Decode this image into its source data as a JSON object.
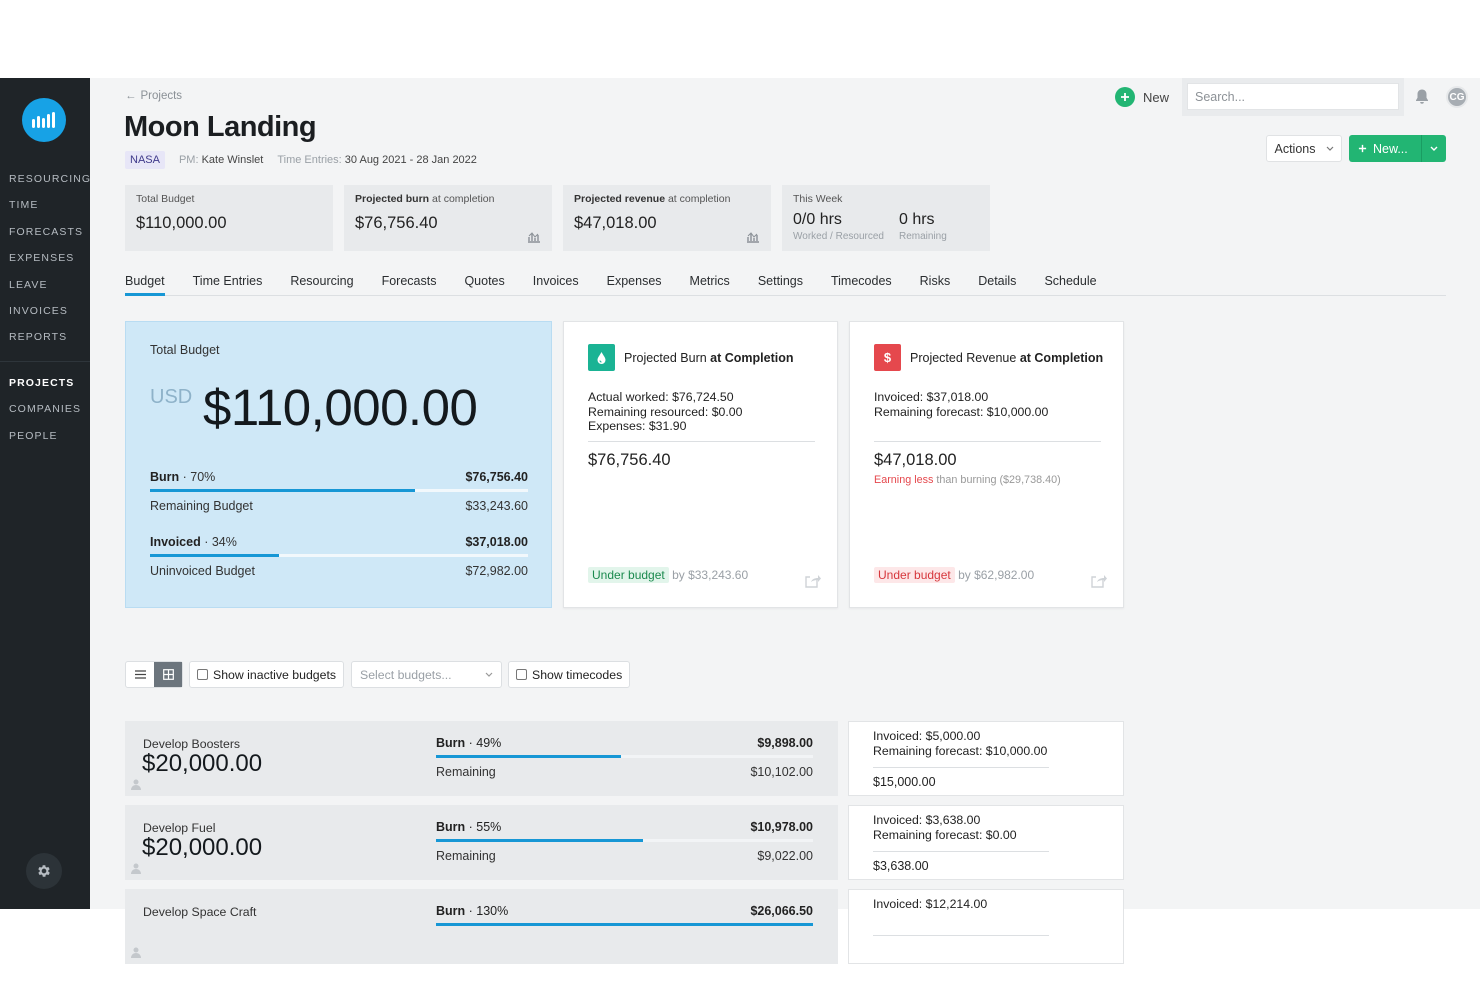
{
  "sidebar": {
    "items_top": [
      "RESOURCING",
      "TIME",
      "FORECASTS",
      "EXPENSES",
      "LEAVE",
      "INVOICES",
      "REPORTS"
    ],
    "items_bottom": [
      "PROJECTS",
      "COMPANIES",
      "PEOPLE"
    ],
    "active": "PROJECTS"
  },
  "topbar": {
    "new_label": "New",
    "search_placeholder": "Search...",
    "avatar_initials": "CG"
  },
  "header": {
    "breadcrumb": "Projects",
    "title": "Moon Landing",
    "client": "NASA",
    "pm_label": "PM:",
    "pm_name": "Kate Winslet",
    "time_entries_label": "Time Entries:",
    "time_entries_range": "30 Aug 2021 - 28 Jan 2022",
    "actions_label": "Actions",
    "new_button_label": "New..."
  },
  "summary": {
    "total_budget": {
      "label": "Total Budget",
      "value": "$110,000.00"
    },
    "projected_burn": {
      "label_bold": "Projected burn",
      "label_rest": "at completion",
      "value": "$76,756.40"
    },
    "projected_revenue": {
      "label_bold": "Projected revenue",
      "label_rest": "at completion",
      "value": "$47,018.00"
    },
    "this_week": {
      "label": "This Week",
      "worked_value": "0/0 hrs",
      "worked_sub": "Worked / Resourced",
      "remaining_value": "0 hrs",
      "remaining_sub": "Remaining"
    }
  },
  "tabs": [
    "Budget",
    "Time Entries",
    "Resourcing",
    "Forecasts",
    "Quotes",
    "Invoices",
    "Expenses",
    "Metrics",
    "Settings",
    "Timecodes",
    "Risks",
    "Details",
    "Schedule"
  ],
  "active_tab": "Budget",
  "budget_card": {
    "title": "Total Budget",
    "currency": "USD",
    "amount": "$110,000.00",
    "burn": {
      "label": "Burn",
      "pct_text": "70%",
      "pct": 70,
      "value": "$76,756.40",
      "sub_label": "Remaining Budget",
      "sub_value": "$33,243.60"
    },
    "invoiced": {
      "label": "Invoiced",
      "pct_text": "34%",
      "pct": 34,
      "value": "$37,018.00",
      "sub_label": "Uninvoiced Budget",
      "sub_value": "$72,982.00"
    }
  },
  "burn_card": {
    "title_plain": "Projected Burn",
    "title_bold": "at Completion",
    "icon_color": "#1ab394",
    "lines": [
      "Actual worked: $76,724.50",
      "Remaining resourced: $0.00",
      "Expenses: $31.90"
    ],
    "total": "$76,756.40",
    "status_tag": "Under budget",
    "status_rest": "by $33,243.60"
  },
  "revenue_card": {
    "title_plain": "Projected Revenue",
    "title_bold": "at Completion",
    "icon_glyph": "$",
    "icon_color": "#e5484d",
    "lines": [
      "Invoiced: $37,018.00",
      "Remaining forecast: $10,000.00"
    ],
    "total": "$47,018.00",
    "earning_red": "Earning less",
    "earning_rest": "than burning ($29,738.40)",
    "status_tag": "Under budget",
    "status_rest": "by $62,982.00"
  },
  "controls": {
    "show_inactive": "Show inactive budgets",
    "select_placeholder": "Select budgets...",
    "show_timecodes": "Show timecodes"
  },
  "budget_rows": [
    {
      "name": "Develop Boosters",
      "amount": "$20,000.00",
      "burn_label": "Burn",
      "burn_pct_text": "49%",
      "burn_pct": 49,
      "burn_value": "$9,898.00",
      "remaining_label": "Remaining",
      "remaining_value": "$10,102.00",
      "inv_lines": [
        "Invoiced: $5,000.00",
        "Remaining forecast: $10,000.00"
      ],
      "inv_total": "$15,000.00"
    },
    {
      "name": "Develop Fuel",
      "amount": "$20,000.00",
      "burn_label": "Burn",
      "burn_pct_text": "55%",
      "burn_pct": 55,
      "burn_value": "$10,978.00",
      "remaining_label": "Remaining",
      "remaining_value": "$9,022.00",
      "inv_lines": [
        "Invoiced: $3,638.00",
        "Remaining forecast: $0.00"
      ],
      "inv_total": "$3,638.00"
    },
    {
      "name": "Develop Space Craft",
      "amount": "",
      "burn_label": "Burn",
      "burn_pct_text": "130%",
      "burn_pct": 100,
      "burn_value": "$26,066.50",
      "remaining_label": "",
      "remaining_value": "",
      "inv_lines": [
        "Invoiced: $12,214.00"
      ],
      "inv_total": ""
    }
  ],
  "colors": {
    "accent": "#1797d5",
    "primary_green": "#22b573",
    "sidebar_bg": "#1f2428",
    "budget_card_bg": "#cfe8f7"
  }
}
